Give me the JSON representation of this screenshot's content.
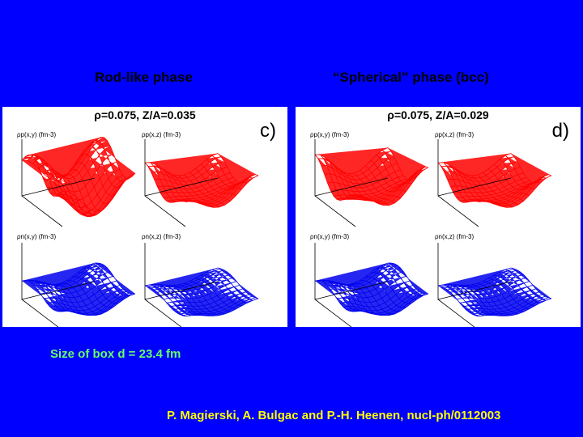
{
  "headings": {
    "rod": "Rod-like phase",
    "spherical": "“Spherical” phase (bcc)"
  },
  "panels": [
    {
      "title": "ρ=0.075, Z/A=0.035",
      "label": "c)",
      "plot_labels": [
        "ρp(x,y) (fm-3)",
        "ρp(x,z) (fm-3)",
        "ρn(x,y) (fm-3)",
        "ρn(x,z) (fm-3)"
      ]
    },
    {
      "title": "ρ=0.075, Z/A=0.029",
      "label": "d)",
      "plot_labels": [
        "ρp(x,y) (fm-3)",
        "ρp(x,z) (fm-3)",
        "ρn(x,y) (fm-3)",
        "ρn(x,z) (fm-3)"
      ]
    }
  ],
  "colors": {
    "background": "#0000ff",
    "proton": "#ff0000",
    "neutron": "#0000ee",
    "footer_text": "#66ff66",
    "citation_text": "#ffff00"
  },
  "footer": {
    "box_size": "Size of box d = 23.4 fm",
    "citation": "P. Magierski, A. Bulgac and P.-H. Heenen, nucl-ph/0112003"
  }
}
